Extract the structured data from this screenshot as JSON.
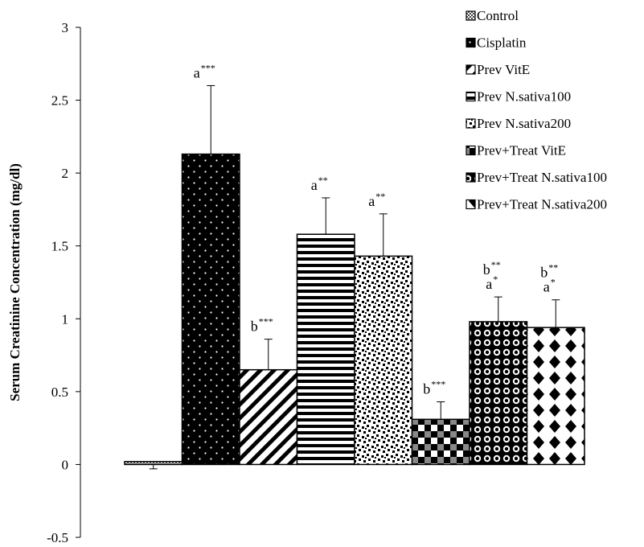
{
  "chart_data": {
    "type": "bar",
    "title": "",
    "xlabel": "",
    "ylabel": "Serum Creatinine Concentration (mg/dl)",
    "ylim": [
      -0.5,
      3
    ],
    "yticks": [
      "-0.5",
      "0",
      "0.5",
      "1",
      "1.5",
      "2",
      "2.5",
      "3"
    ],
    "grid": false,
    "legend_position": "top-right",
    "series": [
      {
        "name": "Control",
        "value": 0.02,
        "error": 0.05,
        "pattern": "checker-fine",
        "annotations": []
      },
      {
        "name": "Cisplatin",
        "value": 2.13,
        "error": 0.47,
        "pattern": "black-dots",
        "annotations": [
          {
            "letter": "a",
            "stars": "***"
          }
        ]
      },
      {
        "name": "Prev VitE",
        "value": 0.65,
        "error": 0.21,
        "pattern": "diagonal",
        "annotations": [
          {
            "letter": "b",
            "stars": "***"
          }
        ]
      },
      {
        "name": "Prev N.sativa100",
        "value": 1.58,
        "error": 0.25,
        "pattern": "horizontal",
        "annotations": [
          {
            "letter": "a",
            "stars": "**"
          }
        ]
      },
      {
        "name": "Prev N.sativa200",
        "value": 1.43,
        "error": 0.29,
        "pattern": "confetti",
        "annotations": [
          {
            "letter": "a",
            "stars": "**"
          }
        ]
      },
      {
        "name": "Prev+Treat VitE",
        "value": 0.31,
        "error": 0.12,
        "pattern": "plaid",
        "annotations": [
          {
            "letter": "b",
            "stars": "***"
          }
        ]
      },
      {
        "name": "Prev+Treat N.sativa100",
        "value": 0.98,
        "error": 0.17,
        "pattern": "circles",
        "annotations": [
          {
            "letter": "a",
            "stars": "*"
          },
          {
            "letter": "b",
            "stars": "**"
          }
        ]
      },
      {
        "name": "Prev+Treat N.sativa200",
        "value": 0.94,
        "error": 0.19,
        "pattern": "diamonds",
        "annotations": [
          {
            "letter": "a",
            "stars": "*"
          },
          {
            "letter": "b",
            "stars": "**"
          }
        ]
      }
    ]
  }
}
